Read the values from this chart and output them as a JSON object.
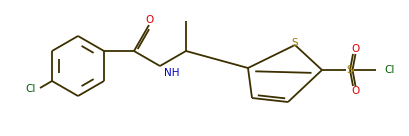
{
  "bg_color": "#ffffff",
  "bond_color": "#3d3000",
  "atom_colors": {
    "O": "#dd0000",
    "N": "#0000cc",
    "S": "#a07800",
    "Cl": "#006000",
    "C": "#000000"
  },
  "figsize": [
    4.09,
    1.36
  ],
  "dpi": 100,
  "lw": 1.3
}
